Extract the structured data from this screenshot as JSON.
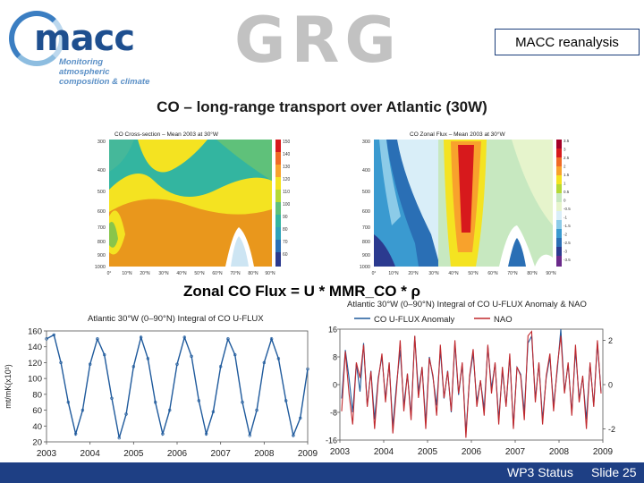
{
  "header": {
    "logo_name": "macc",
    "logo_tagline_1": "Monitoring atmospheric",
    "logo_tagline_2": "composition & climate",
    "partner_logo": "GRG",
    "box_label": "MACC reanalysis"
  },
  "slide_title": "CO – long-range transport over Atlantic (30W)",
  "formula": "Zonal CO Flux = U * MMR_CO  * ρ",
  "cross_section_left": {
    "title": "CO Cross-section – Mean 2003 at 30°W",
    "y_ticks": [
      "300",
      "400",
      "500",
      "600",
      "700",
      "800",
      "900",
      "1000"
    ],
    "x_ticks": [
      "0°",
      "10°N",
      "20°N",
      "30°N",
      "40°N",
      "50°N",
      "60°N",
      "70°N",
      "80°N",
      "90°N"
    ],
    "colorbar": [
      "150",
      "140",
      "130",
      "120",
      "110",
      "100",
      "90",
      "80",
      "70",
      "60"
    ]
  },
  "cross_section_right": {
    "title": "CO Zonal Flux – Mean 2003 at 30°W",
    "y_ticks": [
      "300",
      "400",
      "500",
      "600",
      "700",
      "800",
      "900",
      "1000"
    ],
    "x_ticks": [
      "0°",
      "10°N",
      "20°N",
      "30°N",
      "40°N",
      "50°N",
      "60°N",
      "70°N",
      "80°N",
      "90°N"
    ],
    "colorbar": [
      "3.5",
      "3",
      "2.5",
      "2",
      "1.5",
      "1",
      "0.5",
      "0",
      "-0.5",
      "-1",
      "-1.5",
      "-2",
      "-2.5",
      "-3",
      "-3.5"
    ]
  },
  "chart_data": [
    {
      "type": "line",
      "title": "Atlantic 30°W (0–90°N) Integral of CO U-FLUX",
      "ylabel": "mt/mK(x10¹)",
      "ylim": [
        20,
        160
      ],
      "xlim": [
        2003,
        2009
      ],
      "y_ticks": [
        20,
        40,
        60,
        80,
        100,
        120,
        140,
        160
      ],
      "x_ticks": [
        2003,
        2004,
        2005,
        2006,
        2007,
        2008,
        2009
      ],
      "series": [
        {
          "color": "#1f5a9c",
          "x": [
            2003.0,
            2003.17,
            2003.33,
            2003.5,
            2003.67,
            2003.83,
            2004.0,
            2004.17,
            2004.33,
            2004.5,
            2004.67,
            2004.83,
            2005.0,
            2005.17,
            2005.33,
            2005.5,
            2005.67,
            2005.83,
            2006.0,
            2006.17,
            2006.33,
            2006.5,
            2006.67,
            2006.83,
            2007.0,
            2007.17,
            2007.33,
            2007.5,
            2007.67,
            2007.83,
            2008.0,
            2008.17,
            2008.33,
            2008.5,
            2008.67,
            2008.83,
            2009.0
          ],
          "values": [
            150,
            155,
            120,
            70,
            30,
            60,
            118,
            150,
            130,
            75,
            25,
            55,
            115,
            152,
            125,
            70,
            30,
            60,
            118,
            152,
            128,
            72,
            30,
            58,
            115,
            150,
            130,
            70,
            28,
            60,
            120,
            150,
            125,
            72,
            28,
            50,
            112
          ]
        }
      ]
    },
    {
      "type": "line",
      "title": "Atlantic 30°W (0–90°N) Integral of CO U-FLUX Anomaly  & NAO",
      "xlim": [
        2003,
        2009
      ],
      "ylim_left": [
        -16,
        16
      ],
      "ylim_right": [
        -2.5,
        2.5
      ],
      "y_ticks_left": [
        16,
        8,
        0,
        -8,
        -16
      ],
      "y_ticks_right": [
        2,
        0,
        -2
      ],
      "x_ticks": [
        2003,
        2004,
        2005,
        2006,
        2007,
        2008,
        2009
      ],
      "legend_placement": "top",
      "series": [
        {
          "name": "CO U-FLUX Anomaly",
          "color": "#1f5a9c",
          "axis": "left",
          "values": [
            -4,
            10,
            2,
            -8,
            6,
            -2,
            12,
            -6,
            4,
            -10,
            2,
            8,
            -4,
            6,
            -12,
            0,
            10,
            -6,
            3,
            -9,
            14,
            -2,
            5,
            -11,
            8,
            2,
            -6,
            10,
            -4,
            4,
            -8,
            12,
            -3,
            6,
            -14,
            2,
            9,
            -5,
            1,
            -7,
            11,
            -1,
            6,
            -10,
            4,
            -6,
            8,
            -12,
            5,
            3,
            -8,
            12,
            14,
            -4,
            6,
            -10,
            2,
            8,
            -6,
            4,
            16,
            -2,
            6,
            -8,
            10,
            -4,
            2,
            -10,
            6,
            -6,
            12,
            -2
          ]
        },
        {
          "name": "NAO",
          "color": "#c0282d",
          "axis": "right",
          "values": [
            -1.2,
            1.5,
            -0.4,
            -1.8,
            1.0,
            0.3,
            1.8,
            -1.0,
            0.6,
            -2.0,
            0.2,
            1.4,
            -0.8,
            1.0,
            -2.2,
            -0.2,
            2.0,
            -1.2,
            0.5,
            -1.6,
            2.2,
            -0.6,
            0.8,
            -2.0,
            1.2,
            0.4,
            -1.4,
            1.8,
            -0.6,
            0.6,
            -1.2,
            2.0,
            -0.4,
            1.0,
            -2.4,
            0.4,
            1.6,
            -1.0,
            0.2,
            -1.4,
            1.8,
            -0.4,
            1.0,
            -1.8,
            0.8,
            -1.0,
            1.4,
            -2.0,
            0.8,
            0.4,
            -1.6,
            2.2,
            2.4,
            -0.8,
            1.0,
            -1.8,
            0.4,
            1.4,
            -1.2,
            0.8,
            2.2,
            -0.4,
            1.0,
            -1.4,
            1.8,
            -0.8,
            0.4,
            -2.0,
            1.0,
            -1.0,
            2.0,
            -0.4
          ]
        }
      ]
    }
  ],
  "footer": {
    "left": "WP3 Status",
    "right": "Slide 25",
    "background": "#1e3f84"
  }
}
